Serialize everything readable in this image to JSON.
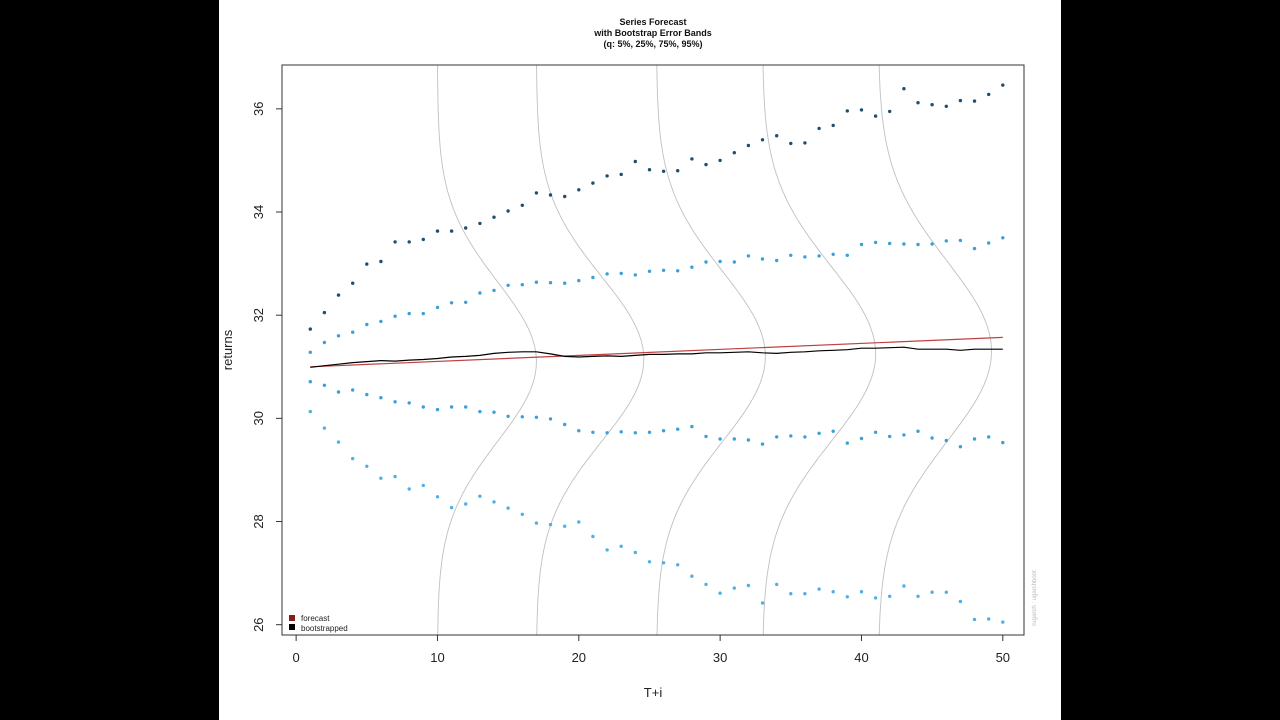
{
  "chart_data": {
    "type": "scatter",
    "title": "Series Forecast",
    "subtitle_lines": [
      "with Bootstrap Error Bands",
      "(q: 5%, 25%, 75%, 95%)"
    ],
    "xlabel": "T+i",
    "ylabel": "returns",
    "xlim": [
      -1,
      51.5
    ],
    "ylim": [
      25.8,
      36.85
    ],
    "x_ticks": [
      0,
      10,
      20,
      30,
      40,
      50
    ],
    "y_ticks": [
      26,
      28,
      30,
      32,
      34,
      36
    ],
    "grid": false,
    "legend": {
      "position": "bottom-left",
      "entries": [
        {
          "label": "forecast",
          "color": "#8b1a1a"
        },
        {
          "label": "bootstrapped",
          "color": "#000000"
        }
      ]
    },
    "side_annotation": "rugarch : ugarchboot",
    "colors": {
      "upper_points": "#1f4e6e",
      "middle_points": "#3b9fd8",
      "lower_points": "#4fb0e8",
      "forecast_line": "#c04040",
      "bootstrapped_line": "#000000",
      "density_curves": "#c0c0c0"
    },
    "series": [
      {
        "name": "forecast",
        "kind": "line",
        "x": [
          1,
          50
        ],
        "y": [
          31.0,
          31.57
        ]
      },
      {
        "name": "bootstrapped",
        "kind": "line",
        "x": [
          1,
          2,
          3,
          4,
          5,
          6,
          7,
          8,
          9,
          10,
          11,
          12,
          13,
          14,
          15,
          16,
          17,
          18,
          19,
          20,
          21,
          22,
          23,
          24,
          25,
          26,
          27,
          28,
          29,
          30,
          31,
          32,
          33,
          34,
          35,
          36,
          37,
          38,
          39,
          40,
          41,
          42,
          43,
          44,
          45,
          46,
          47,
          48,
          49,
          50
        ],
        "y": [
          30.99,
          31.02,
          31.05,
          31.08,
          31.1,
          31.12,
          31.11,
          31.13,
          31.14,
          31.16,
          31.19,
          31.2,
          31.22,
          31.26,
          31.28,
          31.29,
          31.29,
          31.25,
          31.2,
          31.19,
          31.2,
          31.21,
          31.2,
          31.22,
          31.24,
          31.24,
          31.25,
          31.25,
          31.27,
          31.27,
          31.28,
          31.29,
          31.27,
          31.26,
          31.28,
          31.29,
          31.31,
          31.32,
          31.33,
          31.36,
          31.36,
          31.37,
          31.38,
          31.34,
          31.34,
          31.34,
          31.32,
          31.34,
          31.34,
          31.34
        ]
      },
      {
        "name": "q95",
        "kind": "points",
        "color_key": "upper_points",
        "x": [
          1,
          2,
          3,
          4,
          5,
          6,
          7,
          8,
          9,
          10,
          11,
          12,
          13,
          14,
          15,
          16,
          17,
          18,
          19,
          20,
          21,
          22,
          23,
          24,
          25,
          26,
          27,
          28,
          29,
          30,
          31,
          32,
          33,
          34,
          35,
          36,
          37,
          38,
          39,
          40,
          41,
          42,
          43,
          44,
          45,
          46,
          47,
          48,
          49,
          50
        ],
        "y": [
          31.73,
          32.05,
          32.39,
          32.62,
          32.99,
          33.04,
          33.42,
          33.42,
          33.47,
          33.63,
          33.63,
          33.69,
          33.78,
          33.9,
          34.02,
          34.13,
          34.37,
          34.33,
          34.3,
          34.43,
          34.56,
          34.7,
          34.73,
          34.98,
          34.82,
          34.79,
          34.8,
          35.03,
          34.92,
          35.0,
          35.15,
          35.29,
          35.4,
          35.48,
          35.33,
          35.34,
          35.62,
          35.68,
          35.96,
          35.98,
          35.86,
          35.95,
          36.39,
          36.12,
          36.08,
          36.05,
          36.16,
          36.15,
          36.28,
          36.46
        ]
      },
      {
        "name": "q75",
        "kind": "points",
        "color_key": "middle_points",
        "x": [
          1,
          2,
          3,
          4,
          5,
          6,
          7,
          8,
          9,
          10,
          11,
          12,
          13,
          14,
          15,
          16,
          17,
          18,
          19,
          20,
          21,
          22,
          23,
          24,
          25,
          26,
          27,
          28,
          29,
          30,
          31,
          32,
          33,
          34,
          35,
          36,
          37,
          38,
          39,
          40,
          41,
          42,
          43,
          44,
          45,
          46,
          47,
          48,
          49,
          50
        ],
        "y": [
          31.28,
          31.47,
          31.6,
          31.67,
          31.82,
          31.88,
          31.98,
          32.03,
          32.03,
          32.15,
          32.24,
          32.25,
          32.43,
          32.48,
          32.58,
          32.59,
          32.64,
          32.63,
          32.62,
          32.67,
          32.73,
          32.8,
          32.81,
          32.78,
          32.85,
          32.87,
          32.86,
          32.93,
          33.03,
          33.04,
          33.03,
          33.15,
          33.09,
          33.06,
          33.16,
          33.13,
          33.15,
          33.18,
          33.16,
          33.37,
          33.41,
          33.39,
          33.38,
          33.37,
          33.38,
          33.44,
          33.45,
          33.29,
          33.4,
          33.5
        ]
      },
      {
        "name": "q25",
        "kind": "points",
        "color_key": "middle_points",
        "x": [
          1,
          2,
          3,
          4,
          5,
          6,
          7,
          8,
          9,
          10,
          11,
          12,
          13,
          14,
          15,
          16,
          17,
          18,
          19,
          20,
          21,
          22,
          23,
          24,
          25,
          26,
          27,
          28,
          29,
          30,
          31,
          32,
          33,
          34,
          35,
          36,
          37,
          38,
          39,
          40,
          41,
          42,
          43,
          44,
          45,
          46,
          47,
          48,
          49,
          50
        ],
        "y": [
          30.71,
          30.64,
          30.51,
          30.55,
          30.46,
          30.4,
          30.32,
          30.3,
          30.22,
          30.17,
          30.22,
          30.22,
          30.13,
          30.12,
          30.04,
          30.03,
          30.02,
          29.99,
          29.88,
          29.76,
          29.73,
          29.72,
          29.74,
          29.72,
          29.73,
          29.76,
          29.79,
          29.84,
          29.65,
          29.6,
          29.6,
          29.58,
          29.5,
          29.64,
          29.66,
          29.64,
          29.71,
          29.75,
          29.52,
          29.61,
          29.73,
          29.65,
          29.68,
          29.75,
          29.62,
          29.57,
          29.45,
          29.6,
          29.64,
          29.53
        ]
      },
      {
        "name": "q5",
        "kind": "points",
        "color_key": "lower_points",
        "x": [
          1,
          2,
          3,
          4,
          5,
          6,
          7,
          8,
          9,
          10,
          11,
          12,
          13,
          14,
          15,
          16,
          17,
          18,
          19,
          20,
          21,
          22,
          23,
          24,
          25,
          26,
          27,
          28,
          29,
          30,
          31,
          32,
          33,
          34,
          35,
          36,
          37,
          38,
          39,
          40,
          41,
          42,
          43,
          44,
          45,
          46,
          47,
          48,
          49,
          50
        ],
        "y": [
          30.13,
          29.81,
          29.54,
          29.22,
          29.07,
          28.84,
          28.87,
          28.63,
          28.7,
          28.48,
          28.27,
          28.34,
          28.49,
          28.38,
          28.26,
          28.14,
          27.97,
          27.94,
          27.91,
          27.99,
          27.71,
          27.45,
          27.52,
          27.4,
          27.22,
          27.2,
          27.16,
          26.94,
          26.78,
          26.61,
          26.71,
          26.76,
          26.42,
          26.78,
          26.6,
          26.6,
          26.69,
          26.64,
          26.54,
          26.64,
          26.52,
          26.55,
          26.75,
          26.55,
          26.63,
          26.63,
          26.45,
          26.1,
          26.11,
          26.05
        ]
      }
    ],
    "density_curves": [
      {
        "base_x": 10,
        "peak_x": 17.0,
        "peak_y": 31.1,
        "sd": 1.55
      },
      {
        "base_x": 17,
        "peak_x": 24.6,
        "peak_y": 31.15,
        "sd": 1.6
      },
      {
        "base_x": 25.5,
        "peak_x": 33.2,
        "peak_y": 31.2,
        "sd": 1.65
      },
      {
        "base_x": 33,
        "peak_x": 41.0,
        "peak_y": 31.25,
        "sd": 1.7
      },
      {
        "base_x": 41.2,
        "peak_x": 49.2,
        "peak_y": 31.3,
        "sd": 1.75
      }
    ]
  }
}
